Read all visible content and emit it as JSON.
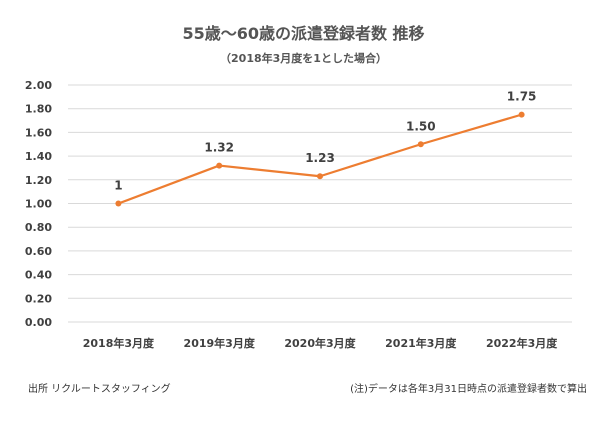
{
  "chart_data": {
    "type": "line",
    "title": "55歳〜60歳の派遣登録者数 推移",
    "subtitle": "（2018年3月度を1とした場合）",
    "categories": [
      "2018年3月度",
      "2019年3月度",
      "2020年3月度",
      "2021年3月度",
      "2022年3月度"
    ],
    "series": [
      {
        "name": "55歳〜60歳の派遣登録者数",
        "values": [
          1,
          1.32,
          1.23,
          1.5,
          1.75
        ],
        "labels": [
          "1",
          "1.32",
          "1.23",
          "1.50",
          "1.75"
        ]
      }
    ],
    "yticks": [
      "0.00",
      "0.20",
      "0.40",
      "0.60",
      "0.80",
      "1.00",
      "1.20",
      "1.40",
      "1.60",
      "1.80",
      "2.00"
    ],
    "ylim": [
      0,
      2
    ],
    "xlabel": "",
    "ylabel": "",
    "grid": true,
    "color": "#ED7D31"
  },
  "footer": {
    "source": "出所 リクルートスタッフィング",
    "note": "(注)データは各年3月31日時点の派遣登録者数で算出"
  }
}
